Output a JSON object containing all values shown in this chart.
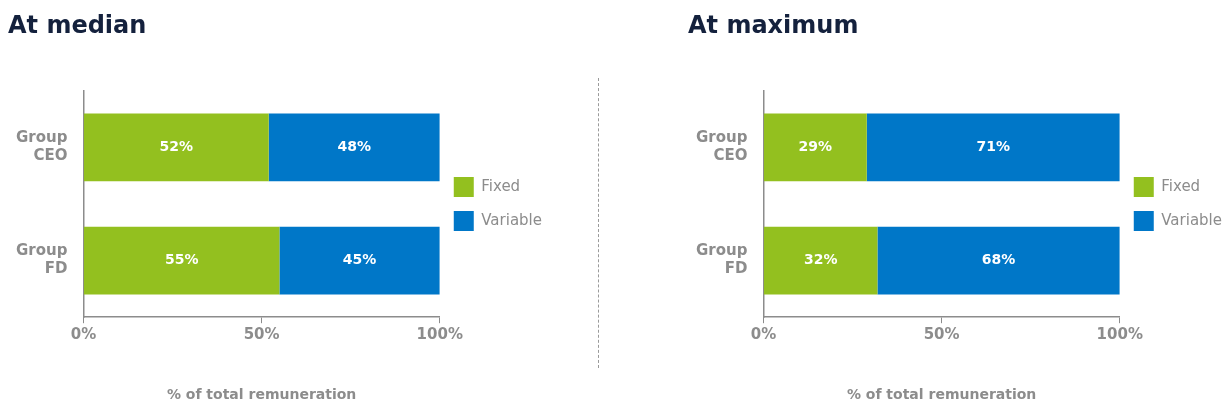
{
  "chart_data": [
    {
      "type": "bar",
      "orientation": "horizontal",
      "stacked": true,
      "title": "At median",
      "xlabel": "% of total remuneration",
      "categories": [
        "Group CEO",
        "Group FD"
      ],
      "series": [
        {
          "name": "Fixed",
          "color": "#93c01f",
          "values": [
            52,
            55
          ],
          "value_labels": [
            "52%",
            "55%"
          ]
        },
        {
          "name": "Variable",
          "color": "#0077c8",
          "values": [
            48,
            45
          ],
          "value_labels": [
            "48%",
            "45%"
          ]
        }
      ],
      "xlim": [
        0,
        100
      ],
      "xticks": [
        {
          "value": 0,
          "label": "0%"
        },
        {
          "value": 50,
          "label": "50%"
        },
        {
          "value": 100,
          "label": "100%"
        }
      ],
      "legend": "right"
    },
    {
      "type": "bar",
      "orientation": "horizontal",
      "stacked": true,
      "title": "At maximum",
      "xlabel": "% of total remuneration",
      "categories": [
        "Group CEO",
        "Group FD"
      ],
      "series": [
        {
          "name": "Fixed",
          "color": "#93c01f",
          "values": [
            29,
            32
          ],
          "value_labels": [
            "29%",
            "32%"
          ]
        },
        {
          "name": "Variable",
          "color": "#0077c8",
          "values": [
            71,
            68
          ],
          "value_labels": [
            "71%",
            "68%"
          ]
        }
      ],
      "xlim": [
        0,
        100
      ],
      "xticks": [
        {
          "value": 0,
          "label": "0%"
        },
        {
          "value": 50,
          "label": "50%"
        },
        {
          "value": 100,
          "label": "100%"
        }
      ],
      "legend": "right"
    }
  ]
}
